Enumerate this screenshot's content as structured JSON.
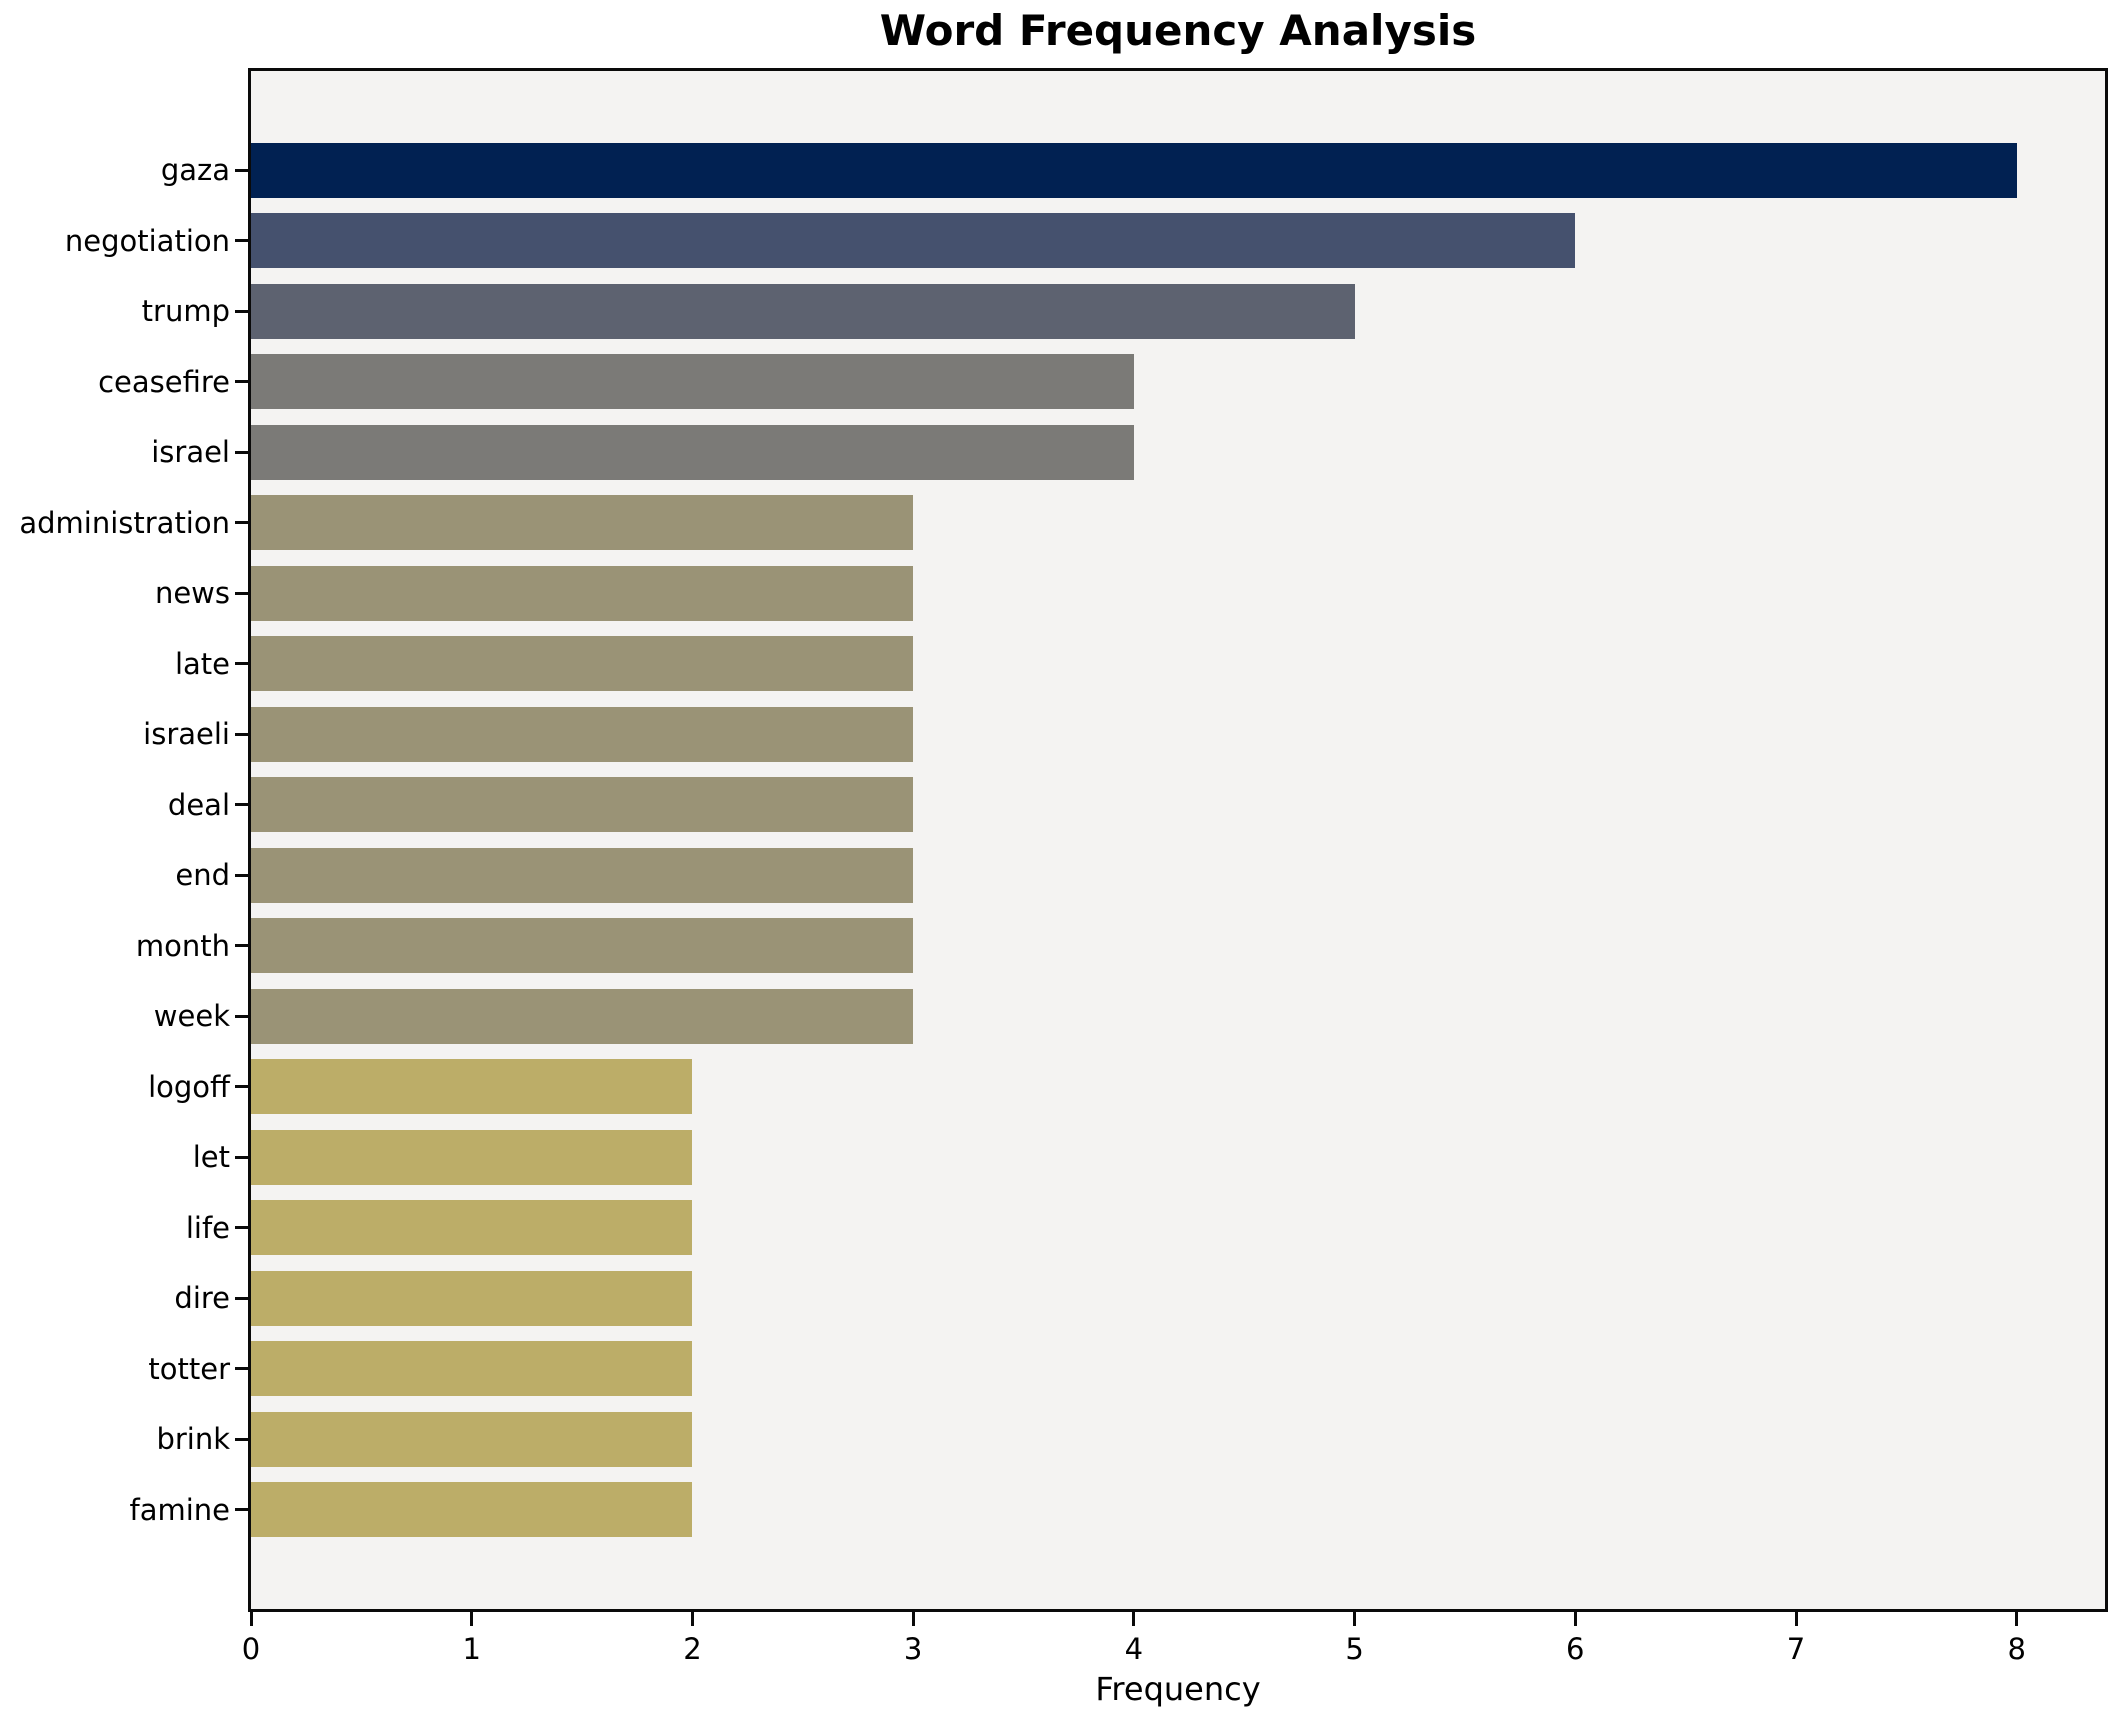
{
  "figure": {
    "title": "Word Frequency Analysis",
    "xlabel": "Frequency"
  },
  "chart_data": {
    "type": "bar",
    "orientation": "horizontal",
    "title": "Word Frequency Analysis",
    "xlabel": "Frequency",
    "ylabel": "",
    "categories": [
      "gaza",
      "negotiation",
      "trump",
      "ceasefire",
      "israel",
      "administration",
      "news",
      "late",
      "israeli",
      "deal",
      "end",
      "month",
      "week",
      "logoff",
      "let",
      "life",
      "dire",
      "totter",
      "brink",
      "famine"
    ],
    "values": [
      8,
      6,
      5,
      4,
      4,
      3,
      3,
      3,
      3,
      3,
      3,
      3,
      3,
      2,
      2,
      2,
      2,
      2,
      2,
      2
    ],
    "bar_colors": [
      "#012152",
      "#45516e",
      "#5d6270",
      "#7b7a77",
      "#7b7a77",
      "#9a9376",
      "#9a9376",
      "#9a9376",
      "#9a9376",
      "#9a9376",
      "#9a9376",
      "#9a9376",
      "#9a9376",
      "#bcad68",
      "#bcad68",
      "#bcad68",
      "#bcad68",
      "#bcad68",
      "#bcad68",
      "#bcad68"
    ],
    "x_ticks": [
      0,
      1,
      2,
      3,
      4,
      5,
      6,
      7,
      8
    ],
    "xlim": [
      0,
      8.4
    ],
    "grid": false,
    "legend_position": "none",
    "plot_background": "#f4f3f2",
    "figure_background": "#ffffff",
    "spine_color": "#0a0a0a"
  }
}
